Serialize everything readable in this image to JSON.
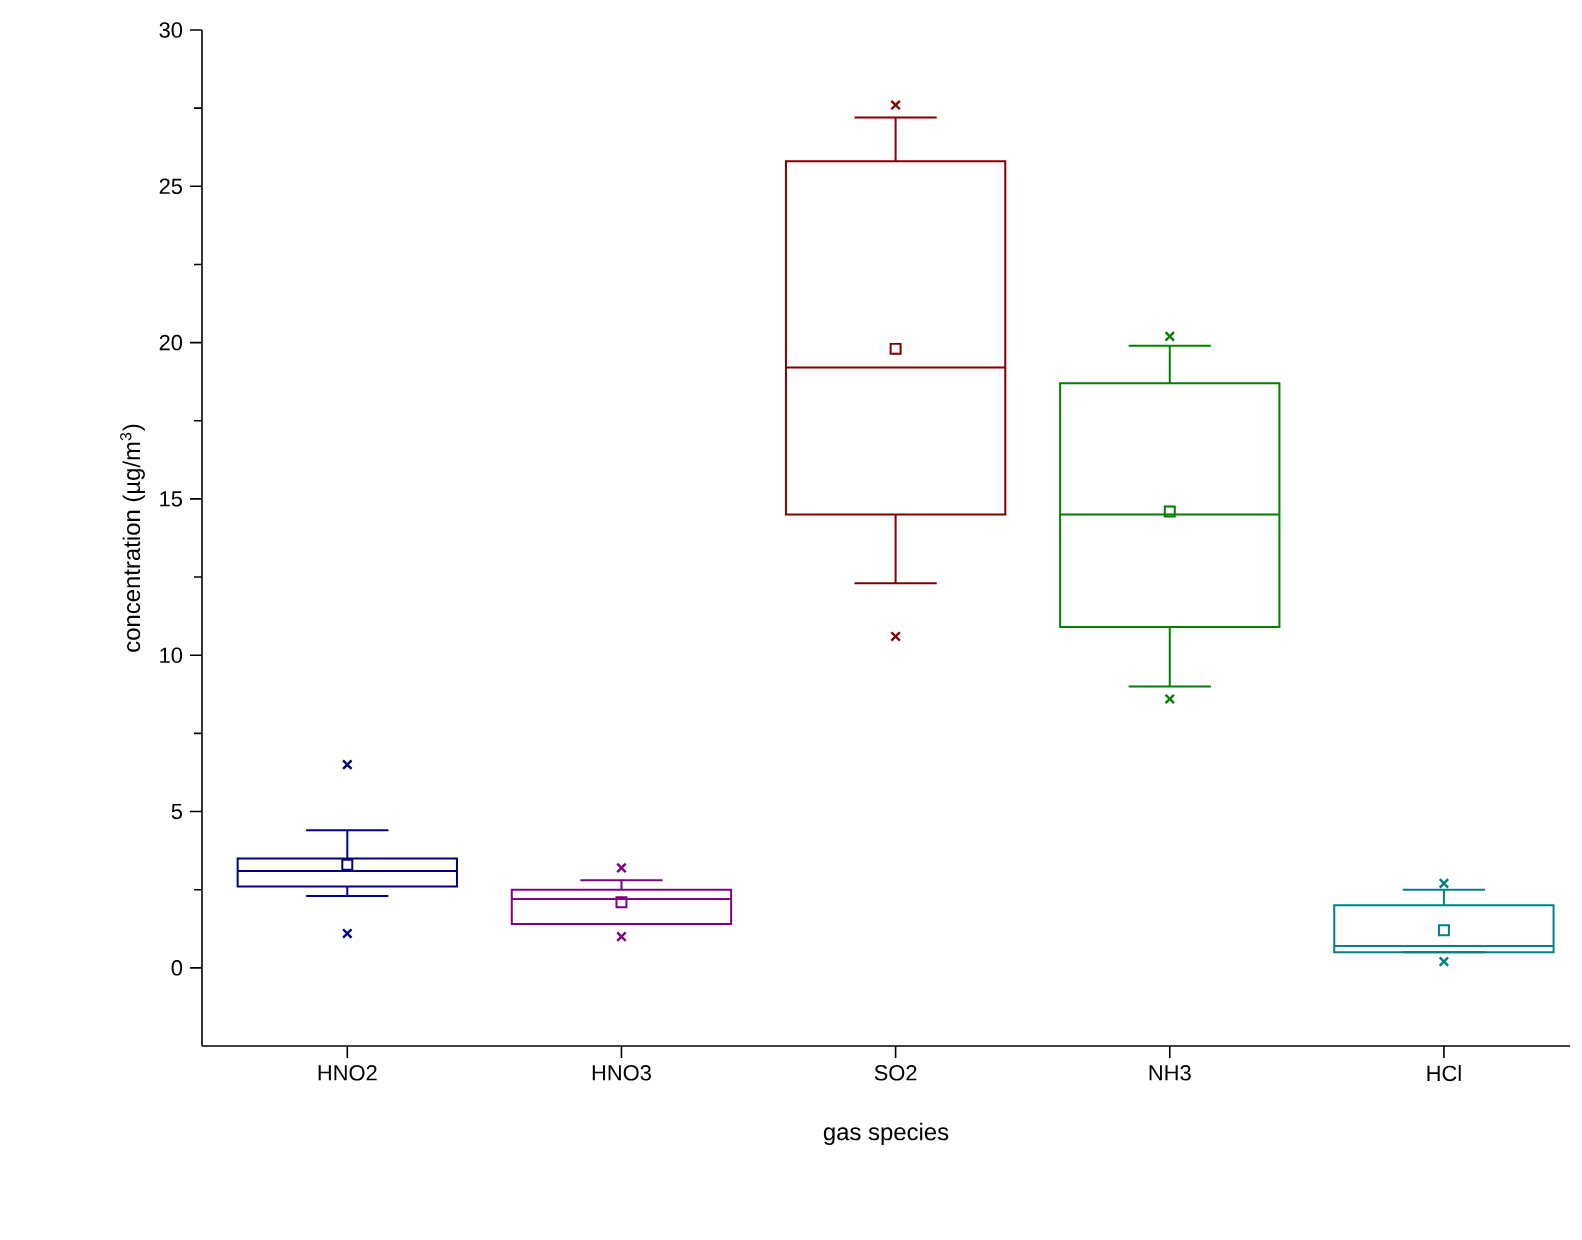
{
  "chart_data": {
    "type": "box",
    "xlabel": "gas species",
    "ylabel": "concentration (µg/m$^{3}$)",
    "categories": [
      "HNO2",
      "HNO3",
      "SO2",
      "NH3",
      "HCl"
    ],
    "colors": [
      "#000080",
      "#800080",
      "#800000",
      "#008000",
      "#008080"
    ],
    "boxes": [
      {
        "low": 2.3,
        "q1": 2.6,
        "median": 3.1,
        "q3": 3.5,
        "high": 4.4,
        "mean": 3.3,
        "outliers": [
          6.5,
          1.1
        ]
      },
      {
        "low": 1.4,
        "q1": 1.4,
        "median": 2.2,
        "q3": 2.5,
        "high": 2.8,
        "mean": 2.1,
        "outliers": [
          3.2,
          1.0
        ]
      },
      {
        "low": 12.3,
        "q1": 14.5,
        "median": 19.2,
        "q3": 25.8,
        "high": 27.2,
        "mean": 19.8,
        "outliers": [
          27.6,
          10.6
        ]
      },
      {
        "low": 9.0,
        "q1": 10.9,
        "median": 14.5,
        "q3": 18.7,
        "high": 19.9,
        "mean": 14.6,
        "outliers": [
          20.2,
          8.6
        ]
      },
      {
        "low": 0.5,
        "q1": 0.5,
        "median": 0.7,
        "q3": 2.0,
        "high": 2.5,
        "mean": 1.2,
        "outliers": [
          2.7,
          0.2
        ]
      }
    ],
    "ylim": [
      -2.5,
      30
    ],
    "yticks": [
      0,
      5,
      10,
      15,
      20,
      25,
      30
    ]
  }
}
